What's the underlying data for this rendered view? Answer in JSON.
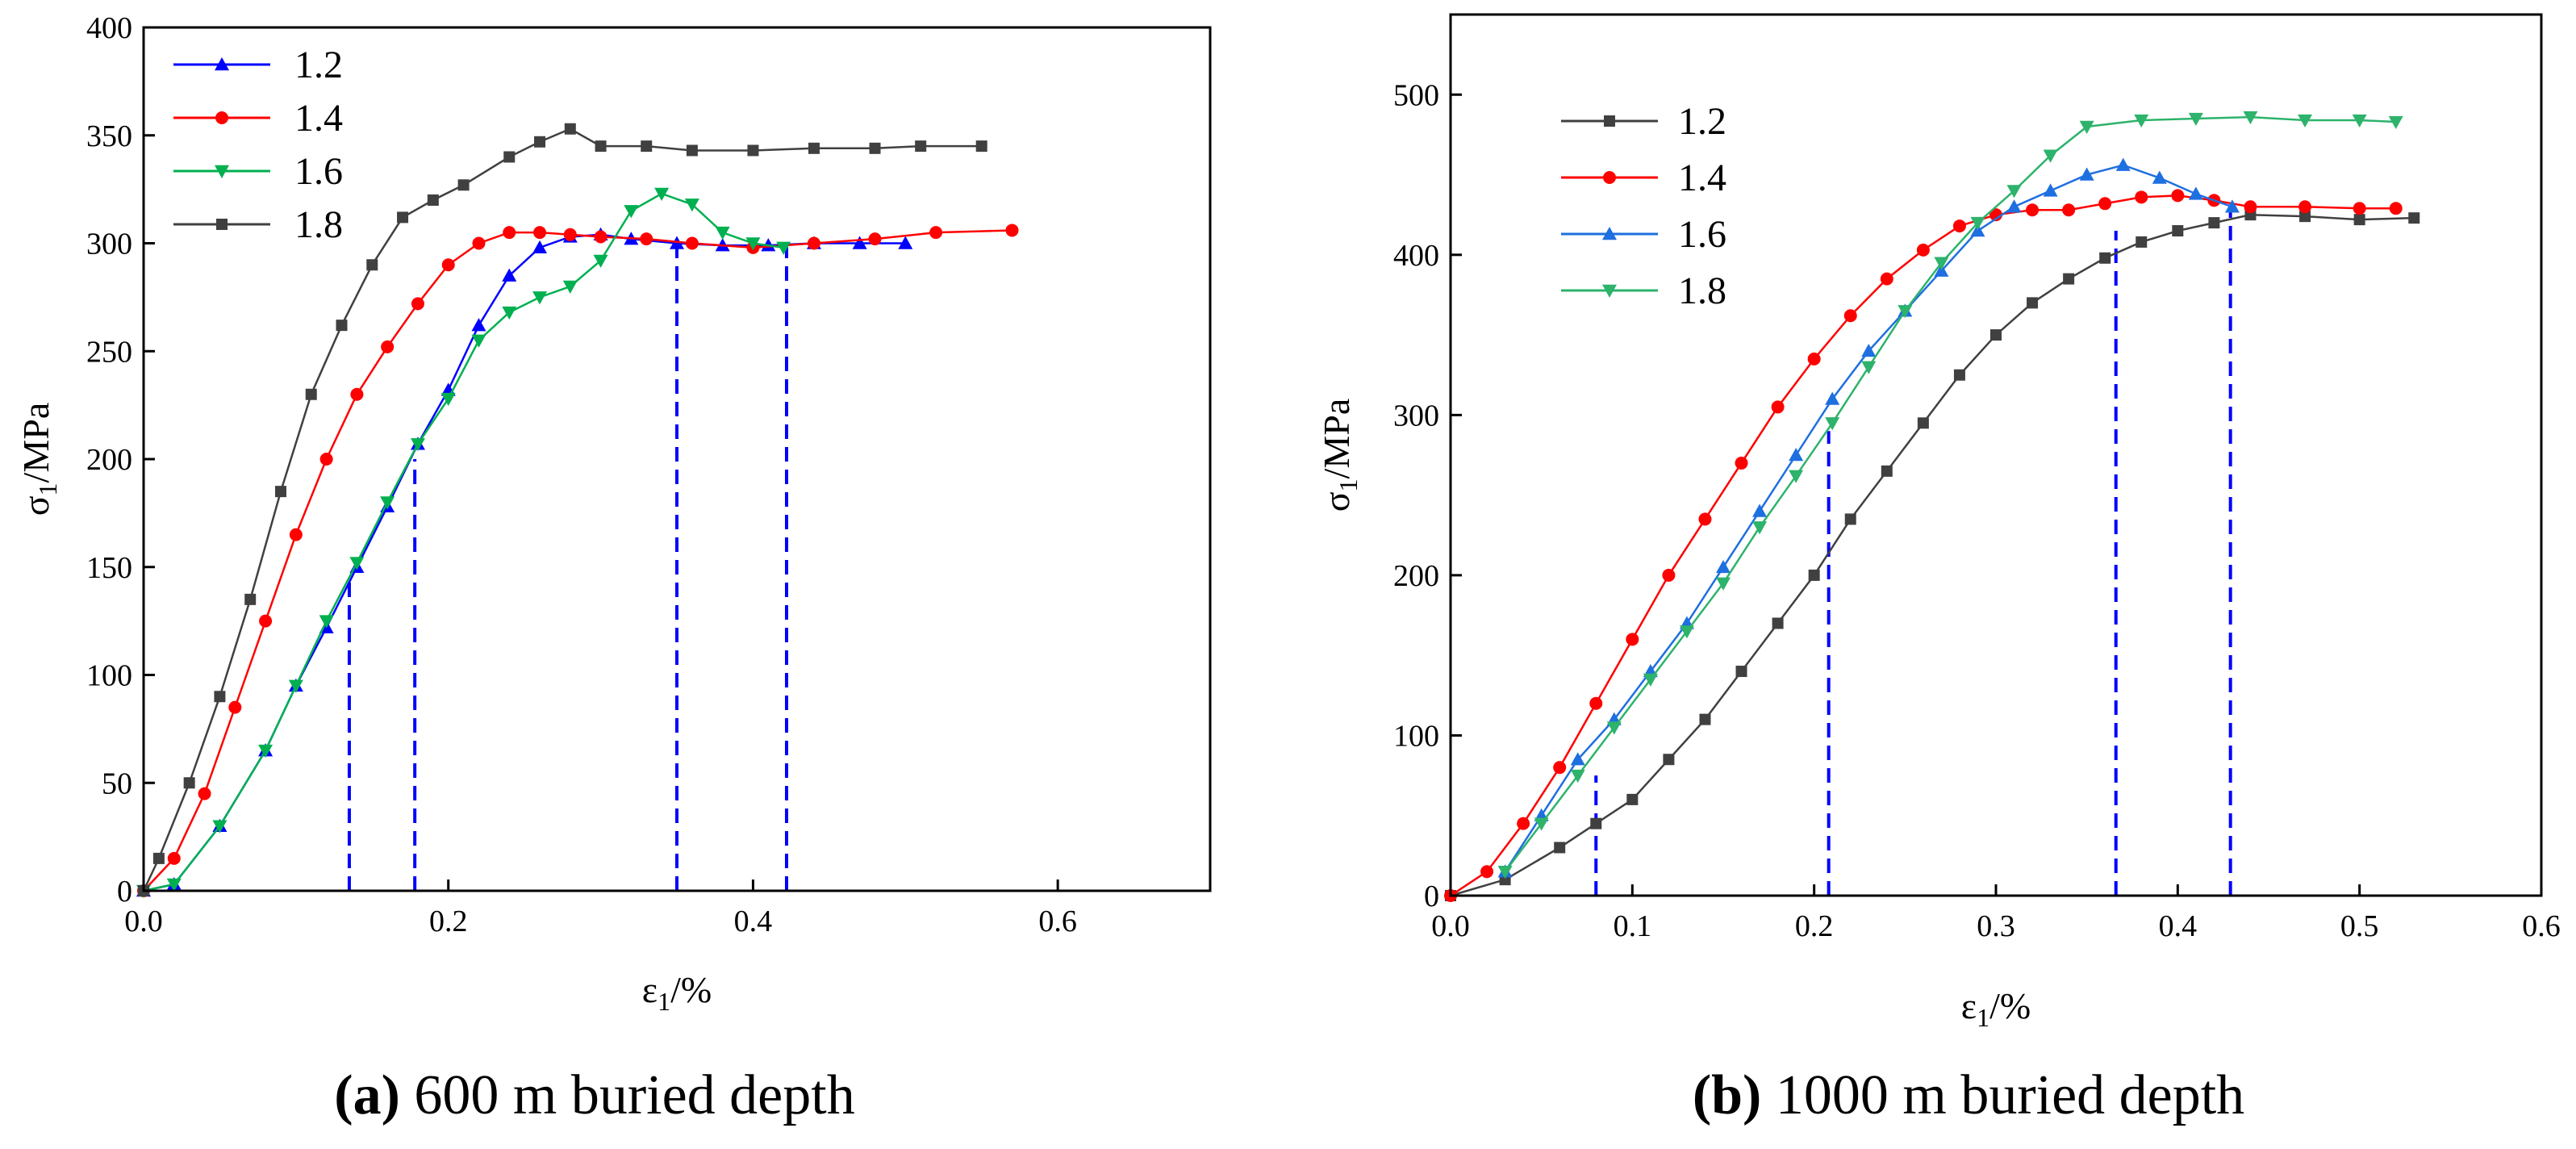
{
  "charts": [
    {
      "caption": {
        "letter": "(a)",
        "text": " 600 m buried depth"
      },
      "ylabel_main": "σ",
      "ylabel_sub": "1",
      "ylabel_rest": "/MPa",
      "xlabel_main": "ε",
      "xlabel_sub": "1",
      "xlabel_rest": "/%",
      "xticks": [
        "0.0",
        "0.2",
        "0.4",
        "0.6"
      ],
      "yticks": [
        "0",
        "50",
        "100",
        "150",
        "200",
        "250",
        "300",
        "350",
        "400"
      ]
    },
    {
      "caption": {
        "letter": "(b)",
        "text": " 1000 m buried depth"
      },
      "ylabel_main": "σ",
      "ylabel_sub": "1",
      "ylabel_rest": "/MPa",
      "xlabel_main": "ε",
      "xlabel_sub": "1",
      "xlabel_rest": "/%",
      "xticks": [
        "0.0",
        "0.1",
        "0.2",
        "0.3",
        "0.4",
        "0.5",
        "0.6"
      ],
      "yticks": [
        "0",
        "100",
        "200",
        "300",
        "400",
        "500"
      ]
    }
  ],
  "chart_data": [
    {
      "type": "line",
      "title": "(a) 600 m buried depth",
      "xlabel": "ε1/%",
      "ylabel": "σ1/MPa",
      "xlim": [
        0,
        0.7
      ],
      "ylim": [
        0,
        400
      ],
      "legend_position": "top-left",
      "series": [
        {
          "name": "1.2",
          "color": "#0000ff",
          "marker": "triangle-up",
          "x": [
            0.0,
            0.02,
            0.05,
            0.08,
            0.1,
            0.12,
            0.14,
            0.16,
            0.18,
            0.2,
            0.22,
            0.24,
            0.26,
            0.28,
            0.3,
            0.32,
            0.35,
            0.38,
            0.41,
            0.44,
            0.47,
            0.5
          ],
          "y": [
            0,
            3,
            30,
            65,
            95,
            122,
            150,
            178,
            207,
            232,
            262,
            285,
            298,
            303,
            304,
            302,
            300,
            299,
            299,
            300,
            300,
            300
          ]
        },
        {
          "name": "1.4",
          "color": "#ff0000",
          "marker": "circle",
          "x": [
            0.0,
            0.02,
            0.04,
            0.06,
            0.08,
            0.1,
            0.12,
            0.14,
            0.16,
            0.18,
            0.2,
            0.22,
            0.24,
            0.26,
            0.28,
            0.3,
            0.33,
            0.36,
            0.4,
            0.44,
            0.48,
            0.52,
            0.57
          ],
          "y": [
            0,
            15,
            45,
            85,
            125,
            165,
            200,
            230,
            252,
            272,
            290,
            300,
            305,
            305,
            304,
            303,
            302,
            300,
            298,
            300,
            302,
            305,
            306
          ]
        },
        {
          "name": "1.6",
          "color": "#00b050",
          "marker": "triangle-down",
          "x": [
            0.0,
            0.02,
            0.05,
            0.08,
            0.1,
            0.12,
            0.14,
            0.16,
            0.18,
            0.2,
            0.22,
            0.24,
            0.26,
            0.28,
            0.3,
            0.32,
            0.34,
            0.36,
            0.38,
            0.4,
            0.42
          ],
          "y": [
            0,
            3,
            30,
            65,
            95,
            125,
            152,
            180,
            207,
            228,
            255,
            268,
            275,
            280,
            292,
            315,
            323,
            318,
            305,
            300,
            298
          ]
        },
        {
          "name": "1.8",
          "color": "#404040",
          "marker": "square",
          "x": [
            0.0,
            0.01,
            0.03,
            0.05,
            0.07,
            0.09,
            0.11,
            0.13,
            0.15,
            0.17,
            0.19,
            0.21,
            0.24,
            0.26,
            0.28,
            0.3,
            0.33,
            0.36,
            0.4,
            0.44,
            0.48,
            0.51,
            0.55
          ],
          "y": [
            0,
            15,
            50,
            90,
            135,
            185,
            230,
            262,
            290,
            312,
            320,
            327,
            340,
            347,
            353,
            345,
            345,
            343,
            343,
            344,
            344,
            345,
            345
          ]
        }
      ],
      "annotations": {
        "dashed_vertical_lines": [
          {
            "x_bottom": 0.135,
            "y_top": 145
          },
          {
            "x_bottom": 0.178,
            "y_top": 200
          },
          {
            "x_bottom": 0.35,
            "y_top": 300
          },
          {
            "x_bottom": 0.422,
            "y_top": 300
          }
        ]
      }
    },
    {
      "type": "line",
      "title": "(b) 1000 m buried depth",
      "xlabel": "ε1/%",
      "ylabel": "σ1/MPa",
      "xlim": [
        0,
        0.6
      ],
      "ylim": [
        0,
        550
      ],
      "legend_position": "top-left",
      "series": [
        {
          "name": "1.2",
          "color": "#404040",
          "marker": "square",
          "x": [
            0.0,
            0.03,
            0.06,
            0.08,
            0.1,
            0.12,
            0.14,
            0.16,
            0.18,
            0.2,
            0.22,
            0.24,
            0.26,
            0.28,
            0.3,
            0.32,
            0.34,
            0.36,
            0.38,
            0.4,
            0.42,
            0.44,
            0.47,
            0.5,
            0.53
          ],
          "y": [
            0,
            10,
            30,
            45,
            60,
            85,
            110,
            140,
            170,
            200,
            235,
            265,
            295,
            325,
            350,
            370,
            385,
            398,
            408,
            415,
            420,
            425,
            424,
            422,
            423
          ]
        },
        {
          "name": "1.4",
          "color": "#ff0000",
          "marker": "circle",
          "x": [
            0.0,
            0.02,
            0.04,
            0.06,
            0.08,
            0.1,
            0.12,
            0.14,
            0.16,
            0.18,
            0.2,
            0.22,
            0.24,
            0.26,
            0.28,
            0.3,
            0.32,
            0.34,
            0.36,
            0.38,
            0.4,
            0.42,
            0.44,
            0.47,
            0.5,
            0.52
          ],
          "y": [
            0,
            15,
            45,
            80,
            120,
            160,
            200,
            235,
            270,
            305,
            335,
            362,
            385,
            403,
            418,
            425,
            428,
            428,
            432,
            436,
            437,
            434,
            430,
            430,
            429,
            429
          ]
        },
        {
          "name": "1.6",
          "color": "#1e6fe0",
          "marker": "triangle-up",
          "x": [
            0.03,
            0.05,
            0.07,
            0.09,
            0.11,
            0.13,
            0.15,
            0.17,
            0.19,
            0.21,
            0.23,
            0.25,
            0.27,
            0.29,
            0.31,
            0.33,
            0.35,
            0.37,
            0.39,
            0.41,
            0.43
          ],
          "y": [
            15,
            50,
            85,
            110,
            140,
            170,
            205,
            240,
            275,
            310,
            340,
            365,
            390,
            415,
            430,
            440,
            450,
            456,
            448,
            438,
            430
          ]
        },
        {
          "name": "1.8",
          "color": "#2db36b",
          "marker": "triangle-down",
          "x": [
            0.03,
            0.05,
            0.07,
            0.09,
            0.11,
            0.13,
            0.15,
            0.17,
            0.19,
            0.21,
            0.23,
            0.25,
            0.27,
            0.29,
            0.31,
            0.33,
            0.35,
            0.38,
            0.41,
            0.44,
            0.47,
            0.5,
            0.52
          ],
          "y": [
            15,
            45,
            75,
            105,
            135,
            165,
            195,
            230,
            262,
            295,
            330,
            365,
            395,
            420,
            440,
            462,
            480,
            484,
            485,
            486,
            484,
            484,
            483
          ]
        }
      ],
      "annotations": {
        "dashed_vertical_lines": [
          {
            "x_bottom": 0.08,
            "y_top": 75
          },
          {
            "x_bottom": 0.208,
            "y_top": 290
          },
          {
            "x_bottom": 0.366,
            "y_top": 415
          },
          {
            "x_bottom": 0.429,
            "y_top": 430
          }
        ]
      }
    }
  ]
}
